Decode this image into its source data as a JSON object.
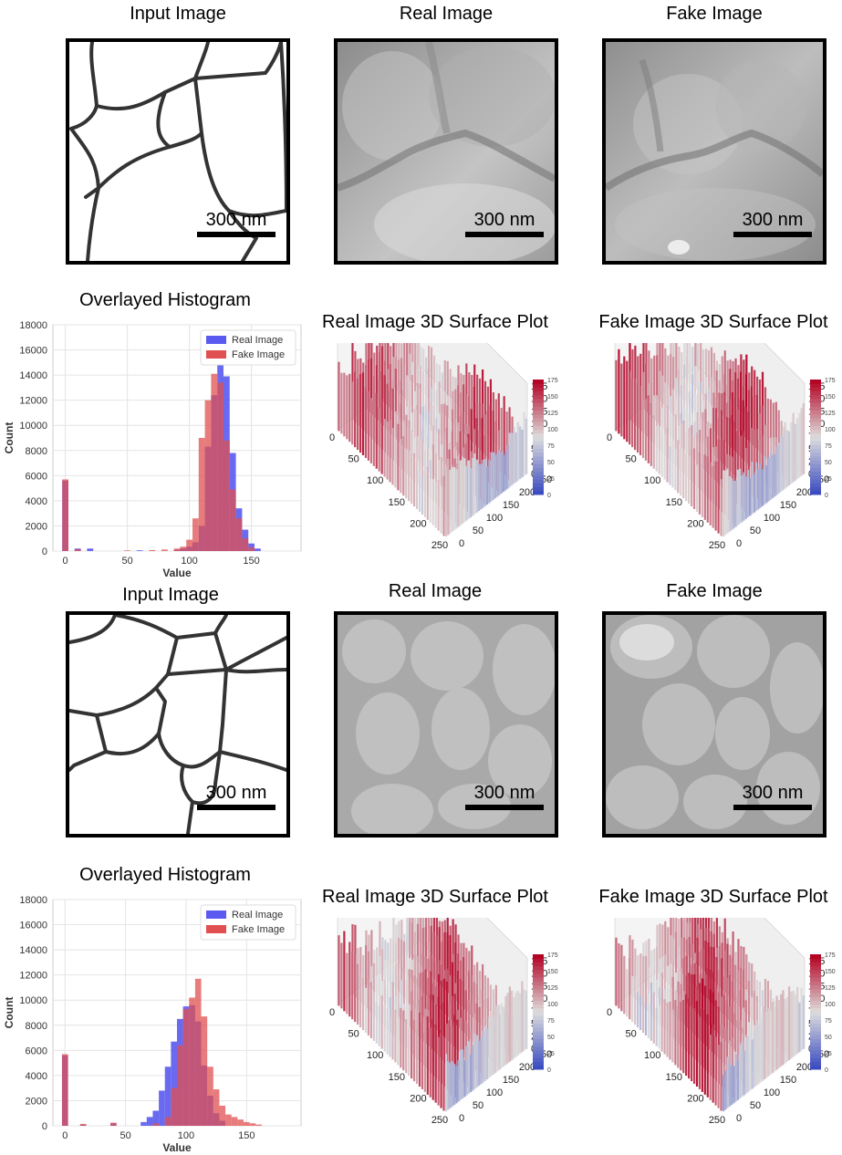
{
  "scale_bar_label": "300 nm",
  "colors": {
    "real": "#5a5af0",
    "fake": "#e05050",
    "overlap": "#b4245a",
    "cmap_low": "#3b4cc0",
    "cmap_mid": "#dddddd",
    "cmap_high": "#b40426"
  },
  "rows": [
    {
      "input_title": "Input Image",
      "real_title": "Real Image",
      "fake_title": "Fake Image",
      "hist_title": "Overlayed Histogram",
      "real_surface_title": "Real Image 3D Surface Plot",
      "fake_surface_title": "Fake Image 3D Surface Plot"
    },
    {
      "input_title": "Input Image",
      "real_title": "Real Image",
      "fake_title": "Fake Image",
      "hist_title": "Overlayed Histogram",
      "real_surface_title": "Real Image 3D Surface Plot",
      "fake_surface_title": "Fake Image 3D Surface Plot"
    }
  ],
  "surface_axes": {
    "z_ticks": [
      "0",
      "25",
      "50",
      "75",
      "100",
      "125",
      "150",
      "175"
    ],
    "x_ticks": [
      "0",
      "50",
      "100",
      "150",
      "200",
      "250"
    ],
    "y_ticks": [
      "0",
      "50",
      "100",
      "150",
      "200",
      "250"
    ],
    "colorbar_ticks": [
      "0",
      "25",
      "50",
      "75",
      "100",
      "125",
      "150",
      "175"
    ]
  },
  "chart_data": [
    {
      "type": "bar",
      "title": "Overlayed Histogram",
      "xlabel": "Value",
      "ylabel": "Count",
      "xlim": [
        -10,
        190
      ],
      "ylim": [
        0,
        18000
      ],
      "xticks": [
        "0",
        "50",
        "100",
        "150"
      ],
      "yticks": [
        "0",
        "2000",
        "4000",
        "6000",
        "8000",
        "10000",
        "12000",
        "14000",
        "16000",
        "18000"
      ],
      "bin_width": 5,
      "legend": [
        "Real Image",
        "Fake Image"
      ],
      "legend_position": "top-right",
      "series": [
        {
          "name": "Real Image",
          "x": [
            0,
            10,
            20,
            60,
            90,
            95,
            100,
            105,
            110,
            115,
            120,
            125,
            130,
            135,
            140,
            145,
            150,
            155
          ],
          "values": [
            5600,
            200,
            200,
            60,
            100,
            200,
            350,
            700,
            2000,
            8300,
            12400,
            14800,
            13900,
            7800,
            3400,
            1700,
            600,
            200
          ]
        },
        {
          "name": "Fake Image",
          "x": [
            0,
            10,
            50,
            70,
            80,
            90,
            95,
            100,
            105,
            110,
            115,
            120,
            125,
            130,
            135,
            140,
            145,
            150
          ],
          "values": [
            5700,
            150,
            50,
            80,
            120,
            200,
            350,
            900,
            2600,
            9000,
            12000,
            14100,
            13400,
            8800,
            4900,
            2600,
            1000,
            300
          ]
        }
      ]
    },
    {
      "type": "bar",
      "title": "Overlayed Histogram",
      "xlabel": "Value",
      "ylabel": "Count",
      "xlim": [
        -10,
        195
      ],
      "ylim": [
        0,
        18000
      ],
      "xticks": [
        "0",
        "50",
        "100",
        "150"
      ],
      "yticks": [
        "0",
        "2000",
        "4000",
        "6000",
        "8000",
        "10000",
        "12000",
        "14000",
        "16000",
        "18000"
      ],
      "bin_width": 5,
      "legend": [
        "Real Image",
        "Fake Image"
      ],
      "legend_position": "top-right",
      "series": [
        {
          "name": "Real Image",
          "x": [
            0,
            15,
            40,
            65,
            70,
            75,
            80,
            85,
            90,
            95,
            100,
            105,
            110,
            115,
            120,
            125,
            130
          ],
          "values": [
            5600,
            100,
            200,
            300,
            700,
            1200,
            2800,
            4700,
            6700,
            8500,
            9500,
            9600,
            8300,
            4800,
            2400,
            1000,
            400
          ]
        },
        {
          "name": "Fake Image",
          "x": [
            0,
            15,
            40,
            75,
            85,
            90,
            95,
            100,
            105,
            110,
            115,
            120,
            125,
            130,
            135,
            140,
            145,
            150,
            155,
            160
          ],
          "values": [
            5700,
            150,
            250,
            200,
            700,
            3000,
            6400,
            9300,
            10200,
            11700,
            8700,
            4700,
            2900,
            1600,
            900,
            700,
            500,
            300,
            200,
            100
          ]
        }
      ]
    }
  ]
}
